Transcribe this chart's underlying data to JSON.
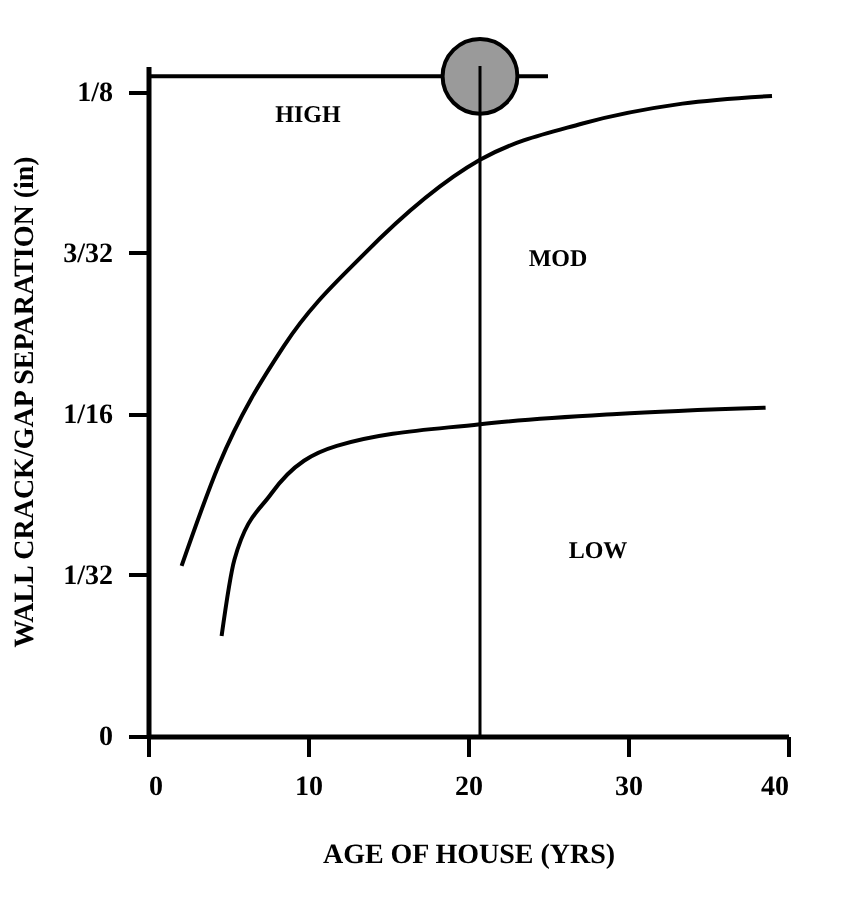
{
  "chart_data": {
    "type": "line",
    "xlabel": "AGE OF HOUSE (YRS)",
    "ylabel": "WALL CRACK/GAP SEPARATION (in)",
    "xlim": [
      0,
      40
    ],
    "xticks": [
      0,
      10,
      20,
      30,
      40
    ],
    "ylim": [
      0,
      0.13
    ],
    "yticks": [
      0,
      {
        "value": 0.03125,
        "label": "1/32"
      },
      {
        "value": 0.0625,
        "label": "1/16"
      },
      {
        "value": 0.09375,
        "label": "3/32"
      },
      {
        "value": 0.125,
        "label": "1/8"
      }
    ],
    "grid": false,
    "marker": "none",
    "line_style": "solid",
    "series": [
      {
        "color": "#000000",
        "x": [
          2.1,
          4.4,
          8.5,
          13.5,
          20.75,
          27.1,
          33.4,
          39
        ],
        "values": [
          0.033,
          0.0524,
          0.0757,
          0.0935,
          0.1118,
          0.1188,
          0.1227,
          0.1242
        ]
      },
      {
        "color": "#000000",
        "x": [
          4.6,
          5.4,
          7.7,
          11.8,
          20.75,
          29.3,
          38.6
        ],
        "values": [
          0.0194,
          0.0342,
          0.047,
          0.0563,
          0.0605,
          0.0625,
          0.0637
        ]
      },
      {
        "color": "#000000",
        "x": [
          0,
          25
        ],
        "values": [
          0.128,
          0.128
        ]
      },
      {
        "type": "scatter",
        "marker": "circle",
        "color": "#9a9a9a",
        "x": [
          20.75
        ],
        "values": [
          0.128
        ]
      }
    ],
    "ref_lines": [
      {
        "axis": "x",
        "value": 20.75,
        "color": "#000000"
      }
    ],
    "annotations": [
      "HIGH",
      "MOD",
      "LOW"
    ]
  }
}
